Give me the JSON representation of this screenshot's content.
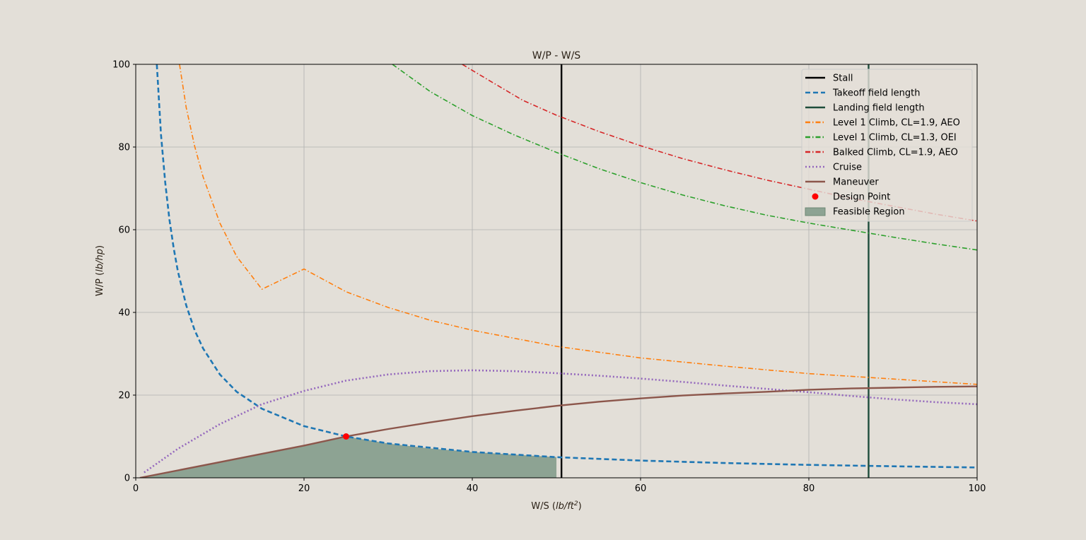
{
  "chart_data": {
    "type": "line",
    "title": "W/P - W/S",
    "xlabel": "W/S (",
    "xlabel_unit": "lb/ft",
    "xlabel_unit_exp": "2",
    "xlabel_close": ")",
    "ylabel": "W/P (",
    "ylabel_unit": "lb/hp",
    "ylabel_close": ")",
    "xlim": [
      0,
      100
    ],
    "ylim": [
      0,
      100
    ],
    "xticks": [
      0,
      20,
      40,
      60,
      80,
      100
    ],
    "yticks": [
      0,
      20,
      40,
      60,
      80,
      100
    ],
    "grid": true,
    "legend_position": "top-right",
    "colors": {
      "background": "#e3dfd8",
      "grid": "#b0b0b0",
      "stall": "#000000",
      "takeoff": "#1f77b4",
      "landing": "#1e4d3b",
      "climb_aeo": "#ff7f0e",
      "climb_oei": "#2ca02c",
      "balked": "#d62728",
      "cruise": "#9467bd",
      "maneuver": "#8c564b",
      "design_point": "#ff0000",
      "feasible": "#8da393"
    },
    "series": [
      {
        "key": "stall",
        "name": "Stall",
        "kind": "vline",
        "x": 50.6,
        "style": "solid",
        "color": "#000000"
      },
      {
        "key": "takeoff",
        "name": "Takeoff field length",
        "kind": "line",
        "style": "dashed",
        "color": "#1f77b4",
        "x": [
          2.5,
          3,
          3.5,
          4,
          4.5,
          5,
          6,
          7,
          8,
          10,
          12,
          15,
          20,
          25,
          30,
          40,
          50,
          60,
          70,
          80,
          90,
          100
        ],
        "y": [
          100,
          83,
          71.4,
          62.5,
          55.6,
          50,
          41.7,
          35.7,
          31.3,
          25,
          20.8,
          16.7,
          12.5,
          10,
          8.3,
          6.25,
          5,
          4.17,
          3.57,
          3.13,
          2.78,
          2.5
        ]
      },
      {
        "key": "landing",
        "name": "Landing field length",
        "kind": "vline",
        "x": 87.1,
        "style": "solid",
        "color": "#1e4d3b"
      },
      {
        "key": "climb_aeo",
        "name": "Level 1 Climb, CL=1.9, AEO",
        "kind": "line",
        "style": "dashdot",
        "color": "#ff7f0e",
        "x": [
          5.2,
          6,
          7,
          8,
          10,
          12,
          15,
          20,
          25,
          30,
          35,
          40,
          50,
          60,
          70,
          80,
          90,
          100
        ],
        "y": [
          100,
          89.5,
          80.2,
          72.8,
          61.6,
          53.5,
          45.6,
          50.5,
          45,
          41.2,
          38.1,
          35.7,
          31.8,
          29,
          27,
          25.2,
          23.9,
          22.6
        ]
      },
      {
        "key": "climb_oei",
        "name": "Level 1 Climb, CL=1.3, OEI",
        "kind": "line",
        "style": "dashdot",
        "color": "#2ca02c",
        "x": [
          30.5,
          35,
          40,
          45,
          50,
          55,
          60,
          65,
          70,
          75,
          80,
          85,
          90,
          95,
          100
        ],
        "y": [
          100,
          93.4,
          87.6,
          82.9,
          78.7,
          74.8,
          71.4,
          68.4,
          65.8,
          63.5,
          61.6,
          59.9,
          58.2,
          56.6,
          55.1
        ]
      },
      {
        "key": "balked",
        "name": "Balked Climb, CL=1.9, AEO",
        "kind": "line",
        "style": "dashdot",
        "color": "#d62728",
        "x": [
          38.8,
          42,
          46,
          50,
          55,
          60,
          65,
          70,
          75,
          80,
          85,
          90,
          95,
          100
        ],
        "y": [
          100,
          96.1,
          91.3,
          87.7,
          83.8,
          80.3,
          77.2,
          74.5,
          72,
          69.8,
          67.6,
          65.7,
          63.8,
          62.1
        ]
      },
      {
        "key": "cruise",
        "name": "Cruise",
        "kind": "line",
        "style": "dotted",
        "color": "#9467bd",
        "x": [
          1,
          5,
          10,
          15,
          20,
          25,
          30,
          35,
          40,
          45,
          50,
          55,
          60,
          65,
          70,
          75,
          80,
          85,
          90,
          95,
          100
        ],
        "y": [
          1.3,
          7,
          13,
          17.8,
          21,
          23.5,
          25,
          25.8,
          26,
          25.8,
          25.3,
          24.7,
          24,
          23.2,
          22.3,
          21.5,
          20.7,
          19.8,
          19,
          18.3,
          17.8
        ]
      },
      {
        "key": "maneuver",
        "name": "Maneuver",
        "kind": "line",
        "style": "solid",
        "color": "#8c564b",
        "x": [
          0.5,
          5,
          10,
          15,
          20,
          25,
          30,
          35,
          40,
          45,
          50,
          55,
          60,
          65,
          70,
          75,
          80,
          85,
          90,
          95,
          100
        ],
        "y": [
          0,
          1.8,
          3.8,
          5.8,
          7.8,
          10,
          11.8,
          13.4,
          14.9,
          16.2,
          17.4,
          18.4,
          19.2,
          19.9,
          20.4,
          20.8,
          21.3,
          21.6,
          21.8,
          22,
          22.1
        ]
      },
      {
        "key": "design_point",
        "name": "Design Point",
        "kind": "point",
        "color": "#ff0000",
        "x": [
          25
        ],
        "y": [
          10
        ]
      },
      {
        "key": "feasible",
        "name": "Feasible Region",
        "kind": "fill",
        "color": "#8da393",
        "x": [
          0.5,
          5,
          10,
          15,
          20,
          25,
          30,
          35,
          40,
          45,
          50,
          50,
          0.5
        ],
        "y": [
          0,
          1.8,
          3.8,
          5.8,
          7.8,
          10,
          8.3,
          7.1,
          6.25,
          5.6,
          5,
          0,
          0
        ]
      }
    ]
  }
}
